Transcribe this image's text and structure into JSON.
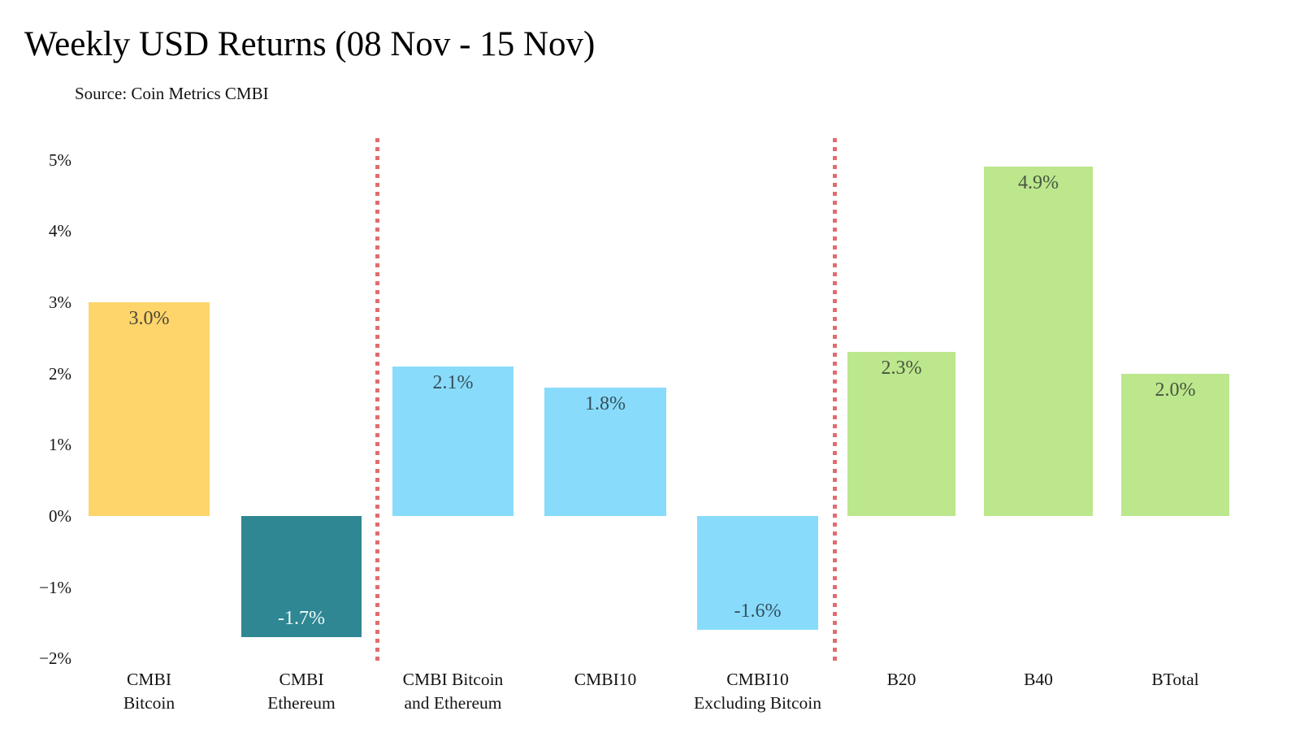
{
  "chart_data": {
    "type": "bar",
    "title": "Weekly USD Returns (08 Nov - 15 Nov)",
    "source": "Source: Coin Metrics CMBI",
    "xlabel": "",
    "ylabel": "",
    "ylim": [
      -2,
      5
    ],
    "grid": false,
    "legend": null,
    "yticks": [
      {
        "label": "5%",
        "value": 5
      },
      {
        "label": "4%",
        "value": 4
      },
      {
        "label": "3%",
        "value": 3
      },
      {
        "label": "2%",
        "value": 2
      },
      {
        "label": "1%",
        "value": 1
      },
      {
        "label": "0%",
        "value": 0
      },
      {
        "label": "−1%",
        "value": -1
      },
      {
        "label": "−2%",
        "value": -2
      }
    ],
    "categories": [
      "CMBI Bitcoin",
      "CMBI Ethereum",
      "CMBI Bitcoin and Ethereum",
      "CMBI10",
      "CMBI10 Excluding Bitcoin",
      "B20",
      "B40",
      "BTotal"
    ],
    "bars": [
      {
        "category": "CMBI Bitcoin",
        "category_lines": [
          "CMBI",
          "Bitcoin"
        ],
        "value": 3.0,
        "display": "3.0%",
        "color": "#fdd56b",
        "value_color": "#4d4739",
        "label_anchor": "top"
      },
      {
        "category": "CMBI Ethereum",
        "category_lines": [
          "CMBI",
          "Ethereum"
        ],
        "value": -1.7,
        "display": "-1.7%",
        "color": "#2e8793",
        "value_color": "#f4fbfb",
        "label_anchor": "bottom"
      },
      {
        "category": "CMBI Bitcoin and Ethereum",
        "category_lines": [
          "CMBI Bitcoin",
          "and Ethereum"
        ],
        "value": 2.1,
        "display": "2.1%",
        "color": "#89dbfb",
        "value_color": "#35505c",
        "label_anchor": "top"
      },
      {
        "category": "CMBI10",
        "category_lines": [
          "CMBI10"
        ],
        "value": 1.8,
        "display": "1.8%",
        "color": "#89dbfb",
        "value_color": "#35505c",
        "label_anchor": "top"
      },
      {
        "category": "CMBI10 Excluding Bitcoin",
        "category_lines": [
          "CMBI10",
          "Excluding Bitcoin"
        ],
        "value": -1.6,
        "display": "-1.6%",
        "color": "#89dbfb",
        "value_color": "#35505c",
        "label_anchor": "bottom"
      },
      {
        "category": "B20",
        "category_lines": [
          "B20"
        ],
        "value": 2.3,
        "display": "2.3%",
        "color": "#bce78d",
        "value_color": "#485540",
        "label_anchor": "top"
      },
      {
        "category": "B40",
        "category_lines": [
          "B40"
        ],
        "value": 4.9,
        "display": "4.9%",
        "color": "#bce78d",
        "value_color": "#485540",
        "label_anchor": "top"
      },
      {
        "category": "BTotal",
        "category_lines": [
          "BTotal"
        ],
        "value": 2.0,
        "display": "2.0%",
        "color": "#bce78d",
        "value_color": "#485540",
        "label_anchor": "top"
      }
    ],
    "separators_after_bar_index": [
      1,
      4
    ],
    "separator_color": "#de6e6e"
  }
}
